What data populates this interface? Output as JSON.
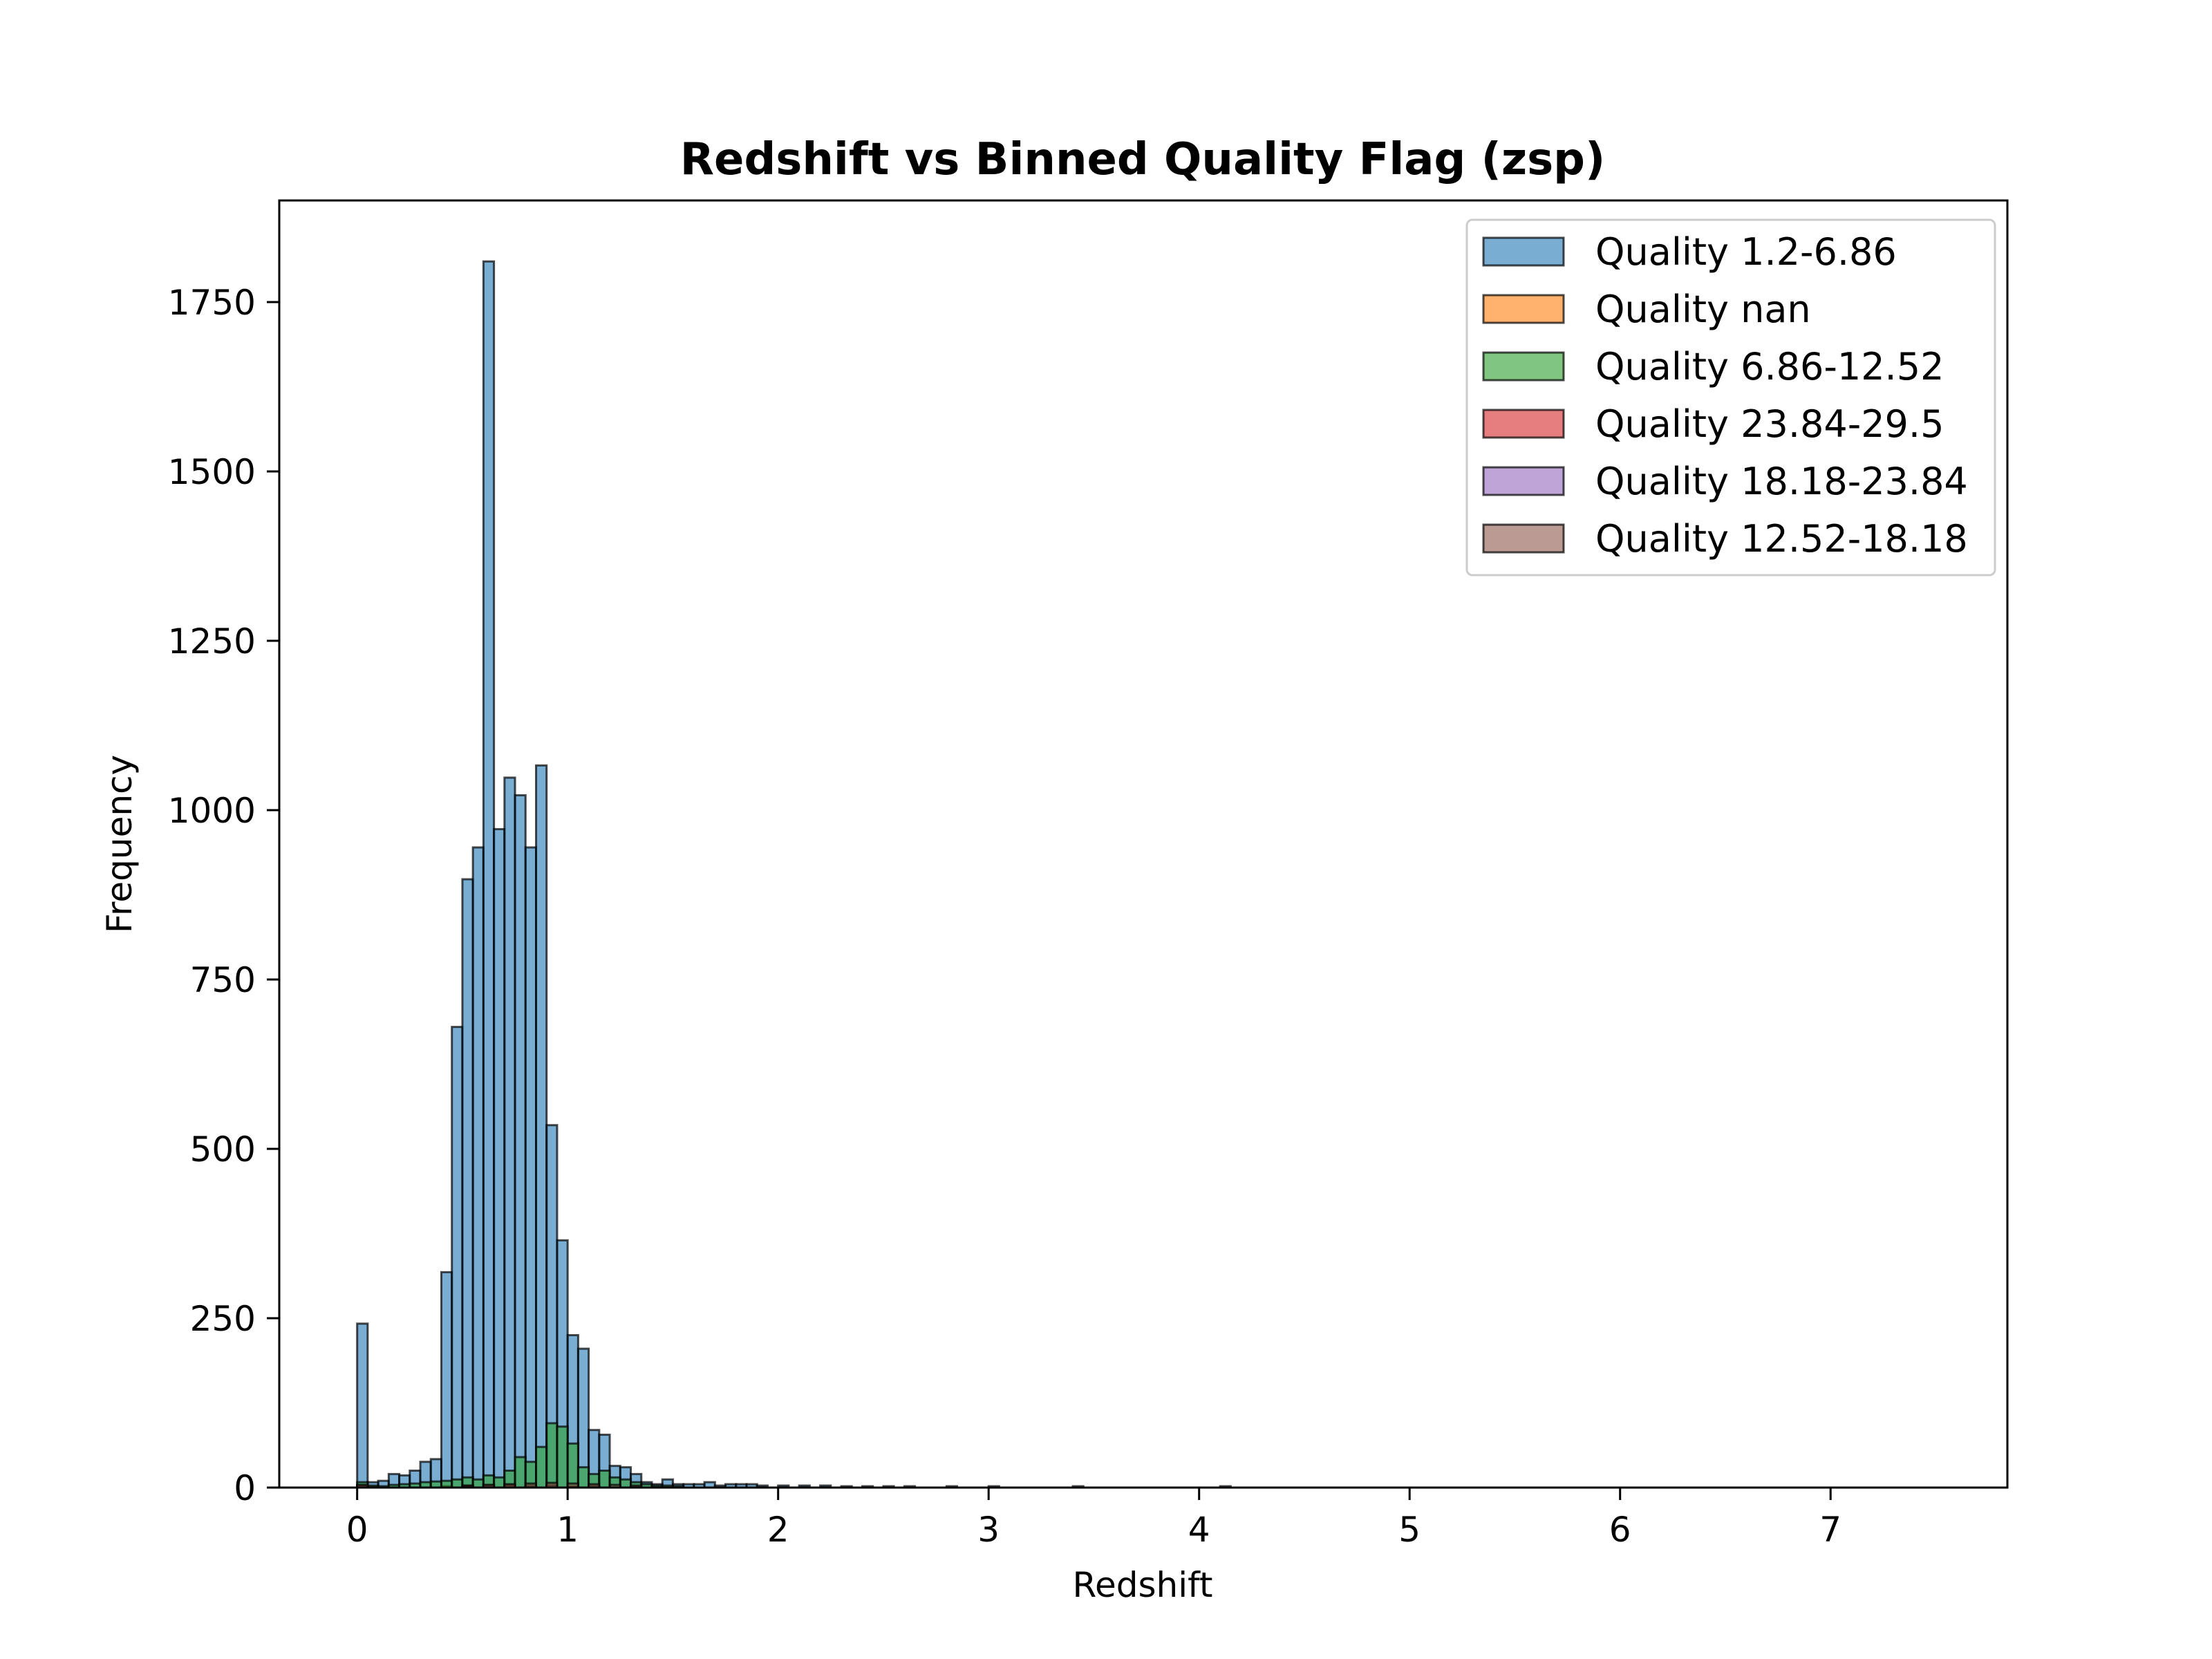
{
  "chart_data": {
    "type": "bar",
    "title": "Redshift vs Binned Quality Flag (zsp)",
    "xlabel": "Redshift",
    "ylabel": "Frequency",
    "xlim": [
      -0.37,
      7.84
    ],
    "ylim": [
      0,
      1900
    ],
    "xticks": [
      0,
      1,
      2,
      3,
      4,
      5,
      6,
      7
    ],
    "yticks": [
      0,
      250,
      500,
      750,
      1000,
      1250,
      1500,
      1750
    ],
    "bin_width": 0.05,
    "legend_position": "upper-right",
    "series": [
      {
        "name": "Quality 1.2-6.86",
        "color": "#1f77b4",
        "x": [
          0.0,
          0.05,
          0.1,
          0.15,
          0.2,
          0.25,
          0.3,
          0.35,
          0.4,
          0.45,
          0.5,
          0.55,
          0.6,
          0.65,
          0.7,
          0.75,
          0.8,
          0.85,
          0.9,
          0.95,
          1.0,
          1.05,
          1.1,
          1.15,
          1.2,
          1.25,
          1.3,
          1.35,
          1.4,
          1.45,
          1.5,
          1.55,
          1.6,
          1.65,
          1.7,
          1.75,
          1.8,
          1.85,
          1.9,
          2.0,
          2.1,
          2.2,
          2.3,
          2.4,
          2.5,
          2.6,
          2.8,
          3.0,
          3.4,
          4.1
        ],
        "values": [
          242,
          8,
          10,
          20,
          18,
          25,
          38,
          42,
          318,
          680,
          898,
          945,
          1810,
          972,
          1048,
          1022,
          945,
          1066,
          535,
          365,
          225,
          205,
          85,
          78,
          32,
          30,
          20,
          8,
          5,
          12,
          5,
          5,
          5,
          8,
          3,
          5,
          5,
          5,
          3,
          3,
          3,
          3,
          2,
          2,
          2,
          2,
          2,
          2,
          2,
          2
        ]
      },
      {
        "name": "Quality nan",
        "color": "#ff7f0e",
        "x": [
          0.0,
          0.05,
          0.4,
          0.5,
          0.6,
          0.7,
          0.8,
          0.9,
          1.0,
          1.1
        ],
        "values": [
          2,
          1,
          2,
          3,
          4,
          4,
          3,
          3,
          2,
          1
        ]
      },
      {
        "name": "Quality 6.86-12.52",
        "color": "#2ca02c",
        "x": [
          0.0,
          0.05,
          0.1,
          0.15,
          0.2,
          0.25,
          0.3,
          0.35,
          0.4,
          0.45,
          0.5,
          0.55,
          0.6,
          0.65,
          0.7,
          0.75,
          0.8,
          0.85,
          0.9,
          0.95,
          1.0,
          1.05,
          1.1,
          1.15,
          1.2,
          1.25,
          1.3,
          1.35,
          1.4,
          1.45,
          1.5
        ],
        "values": [
          8,
          3,
          2,
          4,
          5,
          6,
          8,
          9,
          10,
          12,
          15,
          12,
          18,
          15,
          25,
          45,
          38,
          60,
          95,
          90,
          65,
          30,
          20,
          25,
          15,
          12,
          8,
          5,
          3,
          3,
          2
        ]
      },
      {
        "name": "Quality 23.84-29.5",
        "color": "#d62728",
        "x": [
          0.0,
          0.5,
          0.7,
          0.9,
          1.1
        ],
        "values": [
          3,
          2,
          3,
          3,
          2
        ]
      },
      {
        "name": "Quality 18.18-23.84",
        "color": "#9467bd",
        "x": [
          0.0,
          0.6,
          0.8,
          1.0
        ],
        "values": [
          2,
          2,
          2,
          1
        ]
      },
      {
        "name": "Quality 12.52-18.18",
        "color": "#8c564b",
        "x": [
          0.0,
          0.5,
          0.6,
          0.7,
          0.8,
          0.9,
          1.0,
          1.1,
          1.2,
          1.3
        ],
        "values": [
          4,
          3,
          4,
          5,
          6,
          7,
          6,
          5,
          4,
          3
        ]
      }
    ]
  }
}
